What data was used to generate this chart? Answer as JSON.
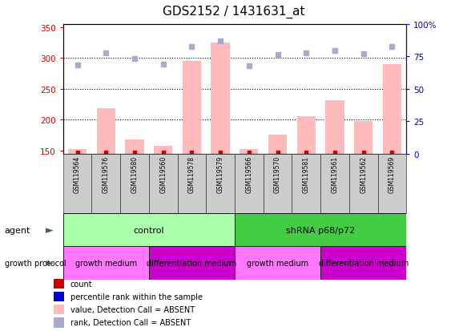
{
  "title": "GDS2152 / 1431631_at",
  "samples": [
    "GSM119564",
    "GSM119576",
    "GSM119580",
    "GSM119560",
    "GSM119578",
    "GSM119579",
    "GSM119566",
    "GSM119570",
    "GSM119581",
    "GSM119561",
    "GSM119562",
    "GSM119569"
  ],
  "bar_values": [
    152,
    218,
    168,
    158,
    295,
    325,
    152,
    175,
    205,
    232,
    198,
    290
  ],
  "rank_values": [
    289,
    308,
    299,
    290,
    319,
    328,
    288,
    305,
    308,
    312,
    307,
    319
  ],
  "ylim_left": [
    145,
    355
  ],
  "ylim_right": [
    0,
    100
  ],
  "yticks_left": [
    150,
    200,
    250,
    300,
    350
  ],
  "yticks_right": [
    0,
    25,
    50,
    75,
    100
  ],
  "left_color": "#cc0000",
  "right_color": "#0000cc",
  "bar_color": "#ffbbbb",
  "rank_color": "#aaaacc",
  "dot_color": "#cc0000",
  "rank_dot_color": "#0000cc",
  "grid_lines": [
    200,
    250,
    300
  ],
  "agent_groups": [
    {
      "label": "control",
      "start": 0,
      "end": 6,
      "color": "#aaffaa"
    },
    {
      "label": "shRNA p68/p72",
      "start": 6,
      "end": 12,
      "color": "#44cc44"
    }
  ],
  "growth_groups": [
    {
      "label": "growth medium",
      "start": 0,
      "end": 3,
      "color": "#ff77ff"
    },
    {
      "label": "differentiation medium",
      "start": 3,
      "end": 6,
      "color": "#cc00cc"
    },
    {
      "label": "growth medium",
      "start": 6,
      "end": 9,
      "color": "#ff77ff"
    },
    {
      "label": "differentiation medium",
      "start": 9,
      "end": 12,
      "color": "#cc00cc"
    }
  ],
  "legend_items": [
    {
      "label": "count",
      "color": "#cc0000"
    },
    {
      "label": "percentile rank within the sample",
      "color": "#0000cc"
    },
    {
      "label": "value, Detection Call = ABSENT",
      "color": "#ffbbbb"
    },
    {
      "label": "rank, Detection Call = ABSENT",
      "color": "#aaaacc"
    }
  ],
  "sample_box_color": "#cccccc",
  "sample_box_edge": "#333333"
}
